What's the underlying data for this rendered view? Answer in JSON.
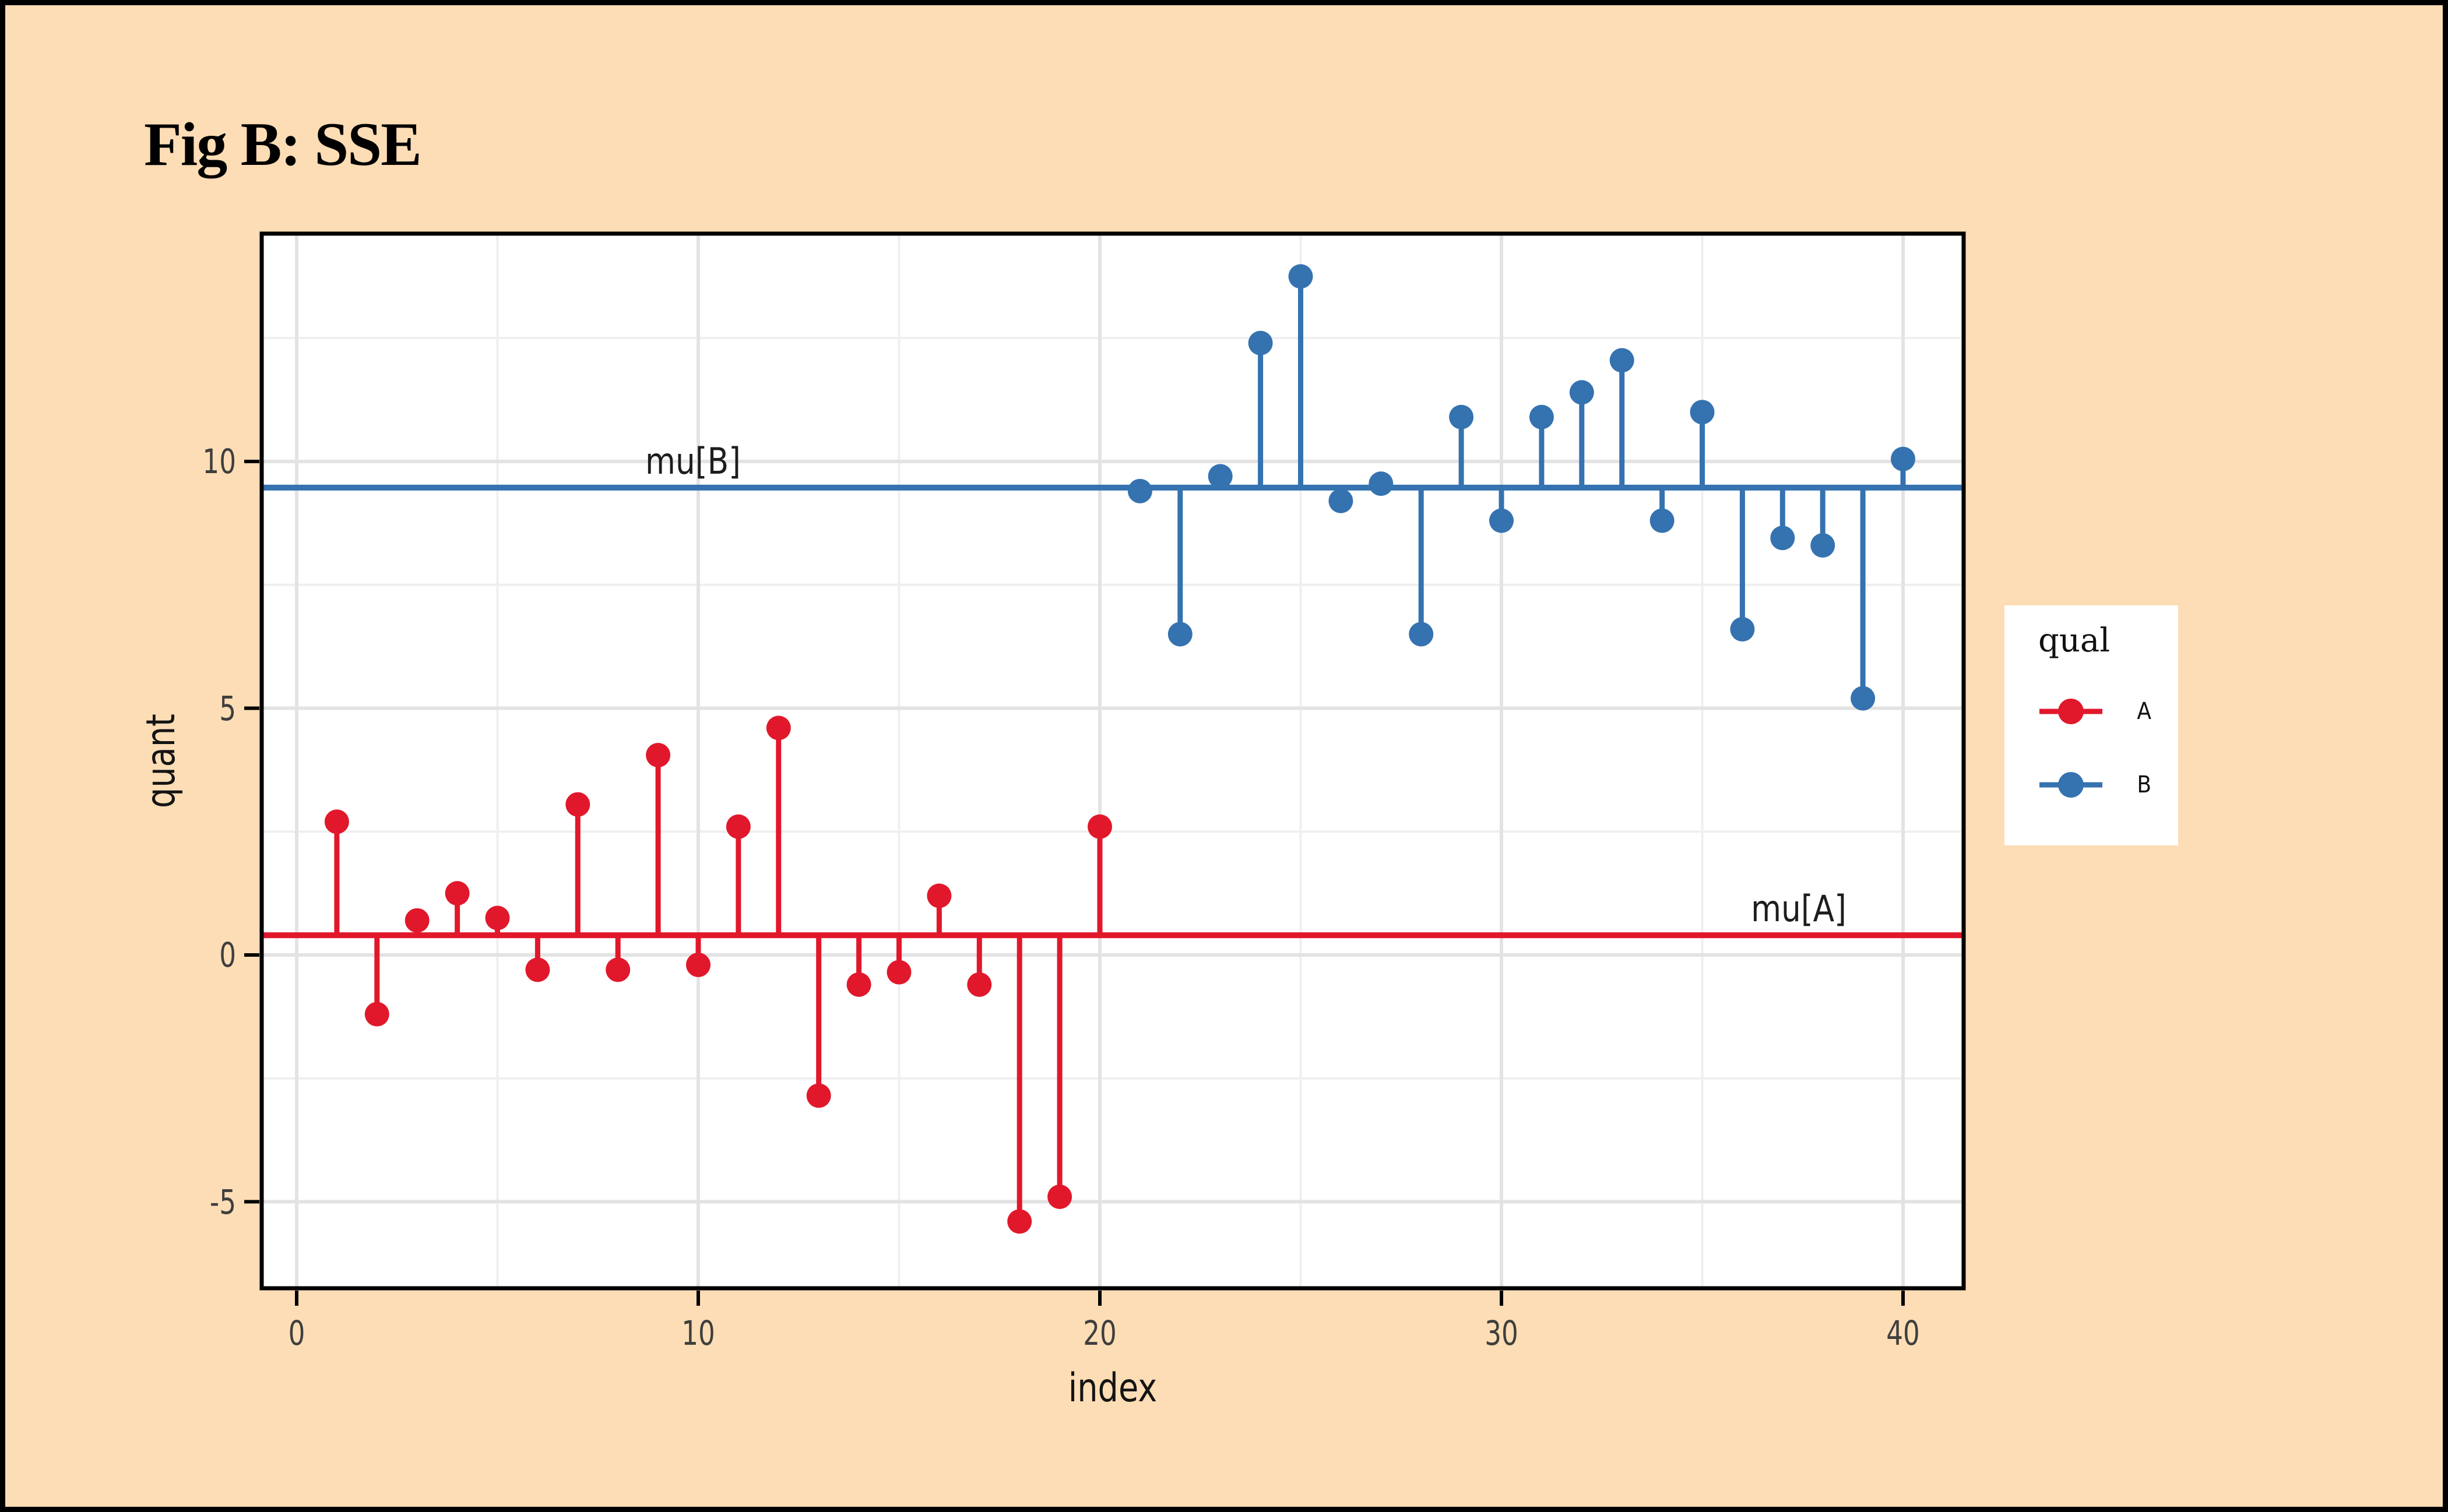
{
  "window": {
    "background": "#FDDDB5",
    "frame_color": "#000000"
  },
  "figure_title": "Fig B: SSE",
  "axis_text_color": "#3E3E3E",
  "chart_data": {
    "type": "stem",
    "title": "Fig B: SSE",
    "xlabel": "index",
    "ylabel": "quant",
    "xlim": [
      -0.9,
      41.5
    ],
    "ylim": [
      -6.75,
      14.6
    ],
    "grid": "major+minor",
    "panel_background": "#FFFFFF",
    "panel_border_color": "#000000",
    "major_grid_color": "#E3E3E3",
    "minor_grid_color": "#EFEFEF",
    "x_major_ticks": [
      0,
      10,
      20,
      30,
      40
    ],
    "y_major_ticks": [
      10,
      5,
      0,
      -5
    ],
    "x_minor_gridlines": [
      5,
      15,
      25,
      35
    ],
    "y_minor_gridlines": [
      -2.5,
      2.5,
      7.5,
      12.5
    ],
    "series": [
      {
        "name": "A",
        "color": "#E1182B",
        "mean": 0.4,
        "mean_label": "mu[A]",
        "x": [
          1,
          2,
          3,
          4,
          5,
          6,
          7,
          8,
          9,
          10,
          11,
          12,
          13,
          14,
          15,
          16,
          17,
          18,
          19,
          20
        ],
        "values": [
          2.7,
          -1.2,
          0.7,
          1.25,
          0.75,
          -0.3,
          3.05,
          -0.3,
          4.05,
          -0.2,
          2.6,
          4.6,
          -2.85,
          -0.6,
          -0.35,
          1.2,
          -0.6,
          -5.4,
          -4.9,
          2.6
        ]
      },
      {
        "name": "B",
        "color": "#3572B0",
        "mean": 9.47,
        "mean_label": "mu[B]",
        "x": [
          21,
          22,
          23,
          24,
          25,
          26,
          27,
          28,
          29,
          30,
          31,
          32,
          33,
          34,
          35,
          36,
          37,
          38,
          39,
          40
        ],
        "values": [
          9.4,
          6.5,
          9.7,
          12.4,
          13.75,
          9.2,
          9.55,
          6.5,
          10.9,
          8.8,
          10.9,
          11.4,
          12.05,
          8.8,
          11.0,
          6.6,
          8.45,
          8.3,
          5.2,
          10.05
        ]
      }
    ],
    "annotations": [
      {
        "text": "mu[B]",
        "x": 9.87,
        "y": 9.47,
        "series": "B"
      },
      {
        "text": "mu[A]",
        "x": 37.4,
        "y": 0.4,
        "series": "A"
      }
    ],
    "legend": {
      "title": "qual",
      "position": "right",
      "entries": [
        {
          "label": "A",
          "color": "#E1182B"
        },
        {
          "label": "B",
          "color": "#3572B0"
        }
      ]
    }
  }
}
